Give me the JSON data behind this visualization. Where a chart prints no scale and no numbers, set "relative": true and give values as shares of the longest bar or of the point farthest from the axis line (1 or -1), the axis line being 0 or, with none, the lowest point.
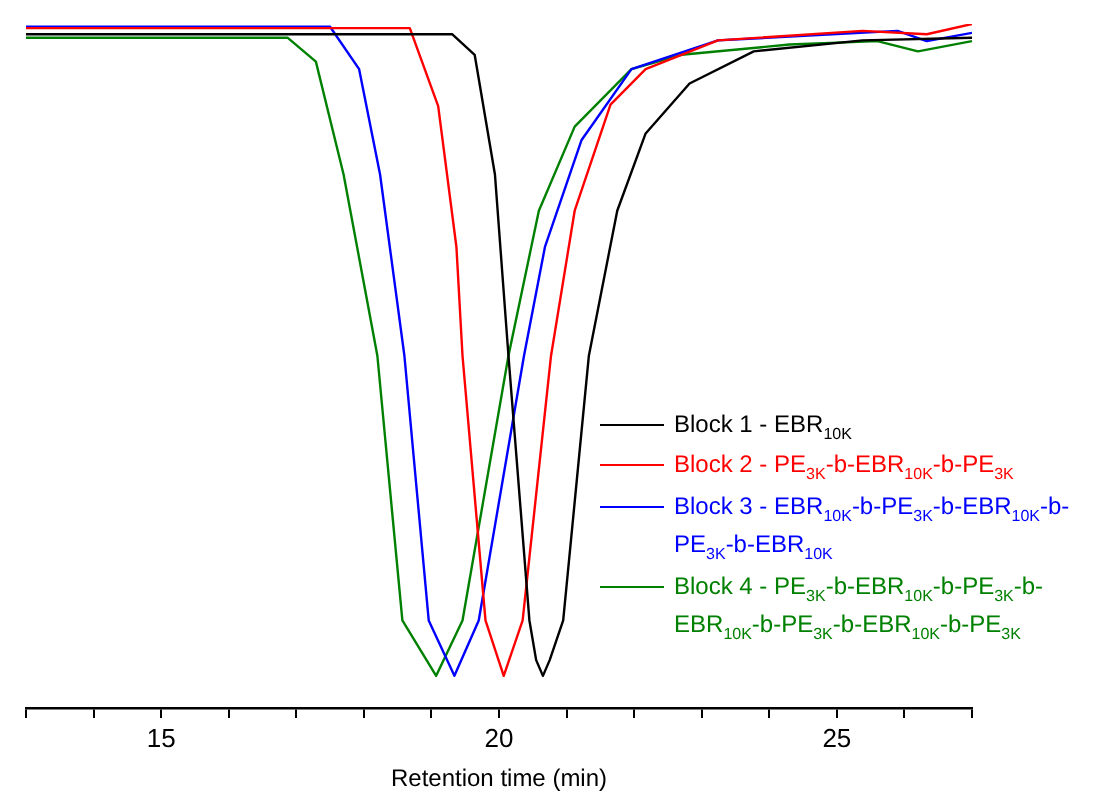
{
  "chart_data": {
    "type": "line",
    "relative": true,
    "xlabel": "Retention time (min)",
    "xlim": [
      13,
      27
    ],
    "xticks": [
      {
        "value": 13,
        "label": null
      },
      {
        "value": 14,
        "label": null
      },
      15,
      {
        "value": 16,
        "label": null
      },
      {
        "value": 17,
        "label": null
      },
      {
        "value": 18,
        "label": null
      },
      {
        "value": 19,
        "label": null
      },
      20,
      {
        "value": 21,
        "label": null
      },
      {
        "value": 22,
        "label": null
      },
      {
        "value": 23,
        "label": null
      },
      {
        "value": 24,
        "label": null
      },
      25,
      {
        "value": 26,
        "label": null
      },
      {
        "value": 27,
        "label": null
      }
    ],
    "grid": false,
    "legend": "bottom right",
    "marker": "none",
    "line_style": "solid",
    "series": [
      {
        "name": "Block 1 - EBR$_{10K}$",
        "color": "#000000",
        "x": [
          13,
          19.31,
          19.64,
          19.94,
          20.14,
          20.45,
          20.55,
          20.65,
          20.75,
          20.95,
          21.33,
          21.75,
          22.17,
          22.82,
          23.77,
          25.38,
          27
        ],
        "values": [
          0.985,
          0.985,
          0.955,
          0.78,
          0.515,
          0.128,
          0.07,
          0.047,
          0.07,
          0.128,
          0.515,
          0.727,
          0.84,
          0.913,
          0.96,
          0.976,
          0.98
        ]
      },
      {
        "name": "Block 2 - PE$_{3K}$-b-EBR$_{10K}$-b-PE$_{3K}$",
        "color": "#ff0000",
        "x": [
          13,
          18.68,
          19.1,
          19.37,
          19.46,
          19.8,
          20.07,
          20.35,
          20.77,
          21.12,
          21.65,
          22.17,
          23.24,
          25.38,
          26.33,
          27
        ],
        "values": [
          0.994,
          0.994,
          0.88,
          0.674,
          0.515,
          0.128,
          0.047,
          0.128,
          0.515,
          0.727,
          0.882,
          0.934,
          0.976,
          0.99,
          0.985,
          1
        ]
      },
      {
        "name": "Block 3 - EBR$_{10K}$-b-PE$_{3K}$-b-EBR$_{10K}$-b-PE$_{3K}$-b-EBR$_{10K}$",
        "color": "#0000ff",
        "x": [
          13,
          17.5,
          17.93,
          18.24,
          18.6,
          18.96,
          19.34,
          19.7,
          20.37,
          20.68,
          21.22,
          21.96,
          23.24,
          25.9,
          26.33,
          27
        ],
        "values": [
          0.996,
          0.996,
          0.934,
          0.78,
          0.515,
          0.128,
          0.047,
          0.128,
          0.515,
          0.674,
          0.83,
          0.934,
          0.976,
          0.99,
          0.975,
          0.987
        ]
      },
      {
        "name": "Block 4 - PE$_{3K}$-b-EBR$_{10K}$-b-PE$_{3K}$-b-EBR$_{10K}$-b-PE$_{3K}$-b-EBR$_{10K}$-b-PE$_{3K}$",
        "color": "#008000",
        "x": [
          13,
          16.87,
          17.29,
          17.7,
          18.2,
          18.57,
          19.07,
          19.46,
          20.14,
          20.59,
          21.12,
          21.96,
          22.7,
          24.3,
          25.6,
          26.2,
          27
        ],
        "values": [
          0.98,
          0.98,
          0.945,
          0.78,
          0.515,
          0.128,
          0.047,
          0.128,
          0.515,
          0.727,
          0.85,
          0.934,
          0.955,
          0.97,
          0.975,
          0.96,
          0.975
        ]
      }
    ]
  }
}
